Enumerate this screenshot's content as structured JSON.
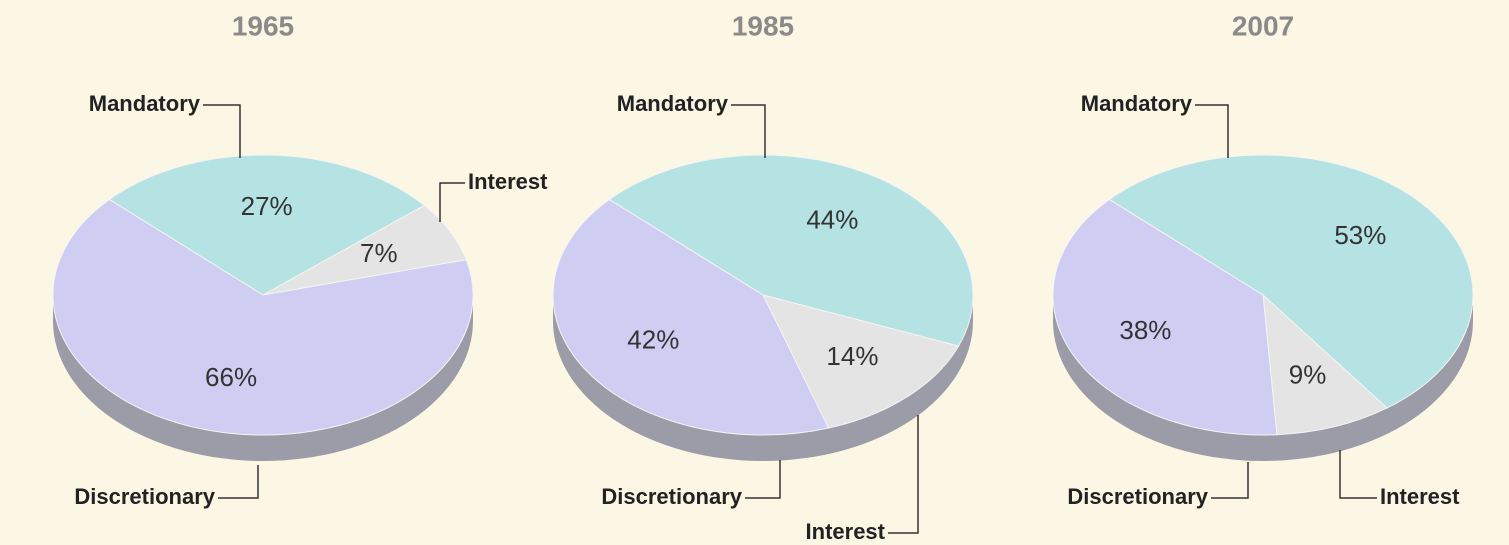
{
  "chart_data": [
    {
      "type": "pie",
      "title": "1965",
      "categories": [
        "Mandatory",
        "Interest",
        "Discretionary"
      ],
      "values": [
        27,
        7,
        66
      ],
      "value_labels": [
        "27%",
        "7%",
        "66%"
      ],
      "colors": [
        "#b5e2e2",
        "#e4e4e4",
        "#cfcdf1"
      ]
    },
    {
      "type": "pie",
      "title": "1985",
      "categories": [
        "Mandatory",
        "Interest",
        "Discretionary"
      ],
      "values": [
        44,
        14,
        42
      ],
      "value_labels": [
        "44%",
        "14%",
        "42%"
      ],
      "colors": [
        "#b5e2e2",
        "#e4e4e4",
        "#cfcdf1"
      ]
    },
    {
      "type": "pie",
      "title": "2007",
      "categories": [
        "Mandatory",
        "Interest",
        "Discretionary"
      ],
      "values": [
        53,
        9,
        38
      ],
      "value_labels": [
        "53%",
        "9%",
        "38%"
      ],
      "colors": [
        "#b5e2e2",
        "#e4e4e4",
        "#cfcdf1"
      ]
    }
  ]
}
